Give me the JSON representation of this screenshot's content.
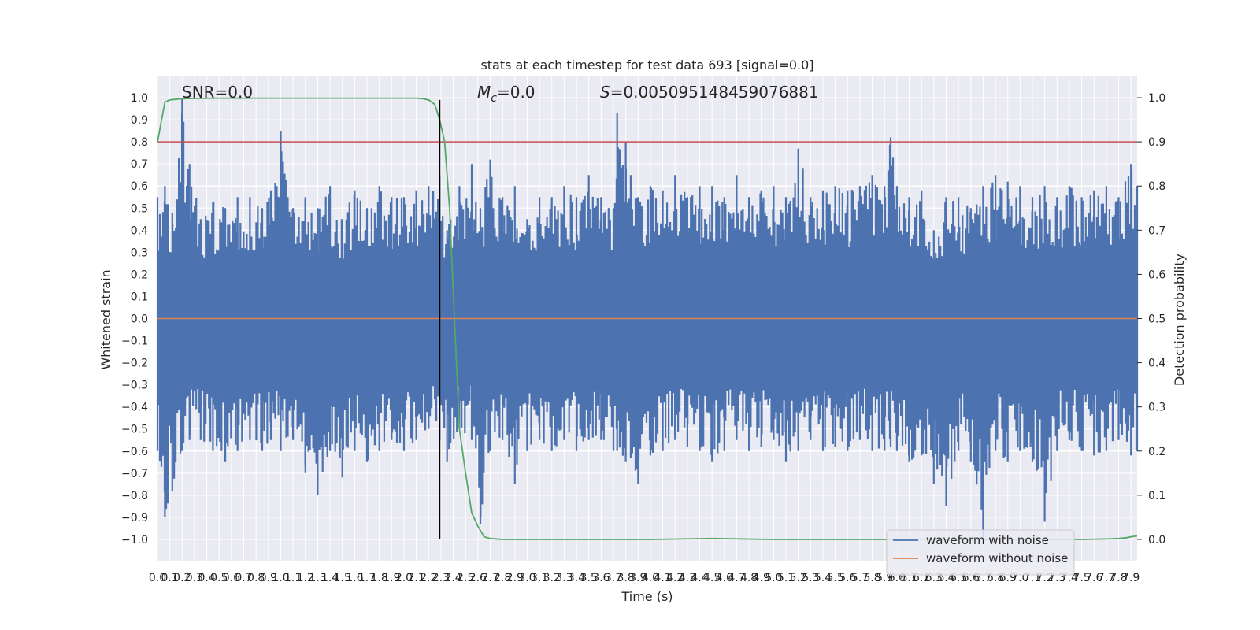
{
  "chart_data": {
    "type": "line",
    "title": "stats at each timestep for test data 693 [signal=0.0]",
    "xlabel": "Time (s)",
    "ylabel": "Whitened strain",
    "y2label": "Detection probability",
    "xlim": [
      0.0,
      7.95
    ],
    "ylim": [
      -1.1,
      1.1
    ],
    "y2lim": [
      -0.05,
      1.05
    ],
    "x_ticks": [
      "0.0",
      "0.1",
      "0.2",
      "0.3",
      "0.4",
      "0.5",
      "0.6",
      "0.7",
      "0.8",
      "0.9",
      "1.0",
      "1.1",
      "1.2",
      "1.3",
      "1.4",
      "1.5",
      "1.6",
      "1.7",
      "1.8",
      "1.9",
      "2.0",
      "2.1",
      "2.2",
      "2.3",
      "2.4",
      "2.5",
      "2.6",
      "2.7",
      "2.8",
      "2.9",
      "3.0",
      "3.1",
      "3.2",
      "3.3",
      "3.4",
      "3.5",
      "3.6",
      "3.7",
      "3.8",
      "3.9",
      "4.0",
      "4.1",
      "4.2",
      "4.3",
      "4.4",
      "4.5",
      "4.6",
      "4.7",
      "4.8",
      "4.9",
      "5.0",
      "5.1",
      "5.2",
      "5.3",
      "5.4",
      "5.5",
      "5.6",
      "5.7",
      "5.8",
      "5.9",
      "6.0",
      "6.1",
      "6.2",
      "6.3",
      "6.4",
      "6.5",
      "6.6",
      "6.7",
      "6.8",
      "6.9",
      "7.0",
      "7.1",
      "7.2",
      "7.3",
      "7.4",
      "7.5",
      "7.6",
      "7.7",
      "7.8",
      "7.9"
    ],
    "y_ticks": [
      "1.0",
      "0.9",
      "0.8",
      "0.7",
      "0.6",
      "0.5",
      "0.4",
      "0.3",
      "0.2",
      "0.1",
      "0.0",
      "−0.1",
      "−0.2",
      "−0.3",
      "−0.4",
      "−0.5",
      "−0.6",
      "−0.7",
      "−0.8",
      "−0.9",
      "−1.0"
    ],
    "y2_ticks": [
      "1.0",
      "0.9",
      "0.8",
      "0.7",
      "0.6",
      "0.5",
      "0.4",
      "0.3",
      "0.2",
      "0.1",
      "0.0"
    ],
    "annotations": {
      "snr": "SNR=0.0",
      "mc_symbol": "M",
      "mc_subscript": "c",
      "mc_value": "=0.0",
      "s_symbol": "S",
      "s_value": "=0.005095148459076881"
    },
    "legend": {
      "placement": "lower right",
      "entries": [
        "waveform with noise",
        "waveform without noise"
      ]
    },
    "colors": {
      "noise": "#4c72b0",
      "clean": "#dd8452",
      "probability": "#55a868",
      "threshold": "#c44e52",
      "marker": "#000000",
      "axes_bg": "#eaeaf2",
      "grid": "#ffffff"
    },
    "series": [
      {
        "name": "waveform with noise",
        "envelope_x": [
          0.0,
          0.06,
          0.12,
          0.2,
          0.26,
          0.35,
          0.45,
          0.55,
          0.65,
          0.75,
          0.85,
          0.92,
          1.0,
          1.1,
          1.2,
          1.3,
          1.4,
          1.5,
          1.6,
          1.7,
          1.8,
          1.9,
          2.0,
          2.1,
          2.2,
          2.29,
          2.35,
          2.45,
          2.55,
          2.62,
          2.7,
          2.8,
          2.9,
          3.0,
          3.1,
          3.2,
          3.3,
          3.4,
          3.5,
          3.6,
          3.7,
          3.73,
          3.8,
          3.9,
          4.0,
          4.1,
          4.2,
          4.3,
          4.4,
          4.5,
          4.6,
          4.7,
          4.8,
          4.9,
          5.0,
          5.1,
          5.2,
          5.3,
          5.4,
          5.5,
          5.6,
          5.7,
          5.8,
          5.9,
          5.95,
          6.0,
          6.1,
          6.2,
          6.3,
          6.4,
          6.5,
          6.6,
          6.7,
          6.8,
          6.9,
          7.0,
          7.1,
          7.2,
          7.3,
          7.4,
          7.5,
          7.6,
          7.7,
          7.8,
          7.9,
          7.95
        ],
        "envelope_max": [
          0.55,
          0.6,
          0.48,
          1.0,
          0.7,
          0.45,
          0.53,
          0.5,
          0.55,
          0.55,
          0.5,
          0.58,
          0.85,
          0.5,
          0.55,
          0.5,
          0.6,
          0.45,
          0.58,
          0.5,
          0.6,
          0.55,
          0.55,
          0.58,
          0.6,
          0.65,
          0.4,
          0.6,
          0.7,
          0.5,
          0.72,
          0.55,
          0.6,
          0.45,
          0.55,
          0.55,
          0.6,
          0.55,
          0.65,
          0.55,
          0.5,
          0.93,
          0.8,
          0.55,
          0.6,
          0.58,
          0.65,
          0.55,
          0.6,
          0.6,
          0.55,
          0.65,
          0.55,
          0.58,
          0.6,
          0.55,
          0.77,
          0.55,
          0.58,
          0.6,
          0.58,
          0.6,
          0.65,
          0.6,
          0.82,
          0.6,
          0.55,
          0.58,
          0.4,
          0.55,
          0.55,
          0.5,
          0.6,
          0.65,
          0.62,
          0.6,
          0.55,
          0.6,
          0.55,
          0.6,
          0.55,
          0.58,
          0.6,
          0.55,
          0.7,
          0.6
        ],
        "envelope_min": [
          -0.6,
          -0.9,
          -0.78,
          -0.6,
          -0.55,
          -0.55,
          -0.6,
          -0.65,
          -0.6,
          -0.55,
          -0.6,
          -0.55,
          -0.6,
          -0.55,
          -0.7,
          -0.8,
          -0.6,
          -0.72,
          -0.6,
          -0.65,
          -0.6,
          -0.55,
          -0.6,
          -0.55,
          -0.5,
          -0.55,
          -0.65,
          -0.5,
          -0.55,
          -0.93,
          -0.6,
          -0.55,
          -0.75,
          -0.6,
          -0.55,
          -0.6,
          -0.55,
          -0.6,
          -0.55,
          -0.55,
          -0.6,
          -0.6,
          -0.65,
          -0.75,
          -0.62,
          -0.6,
          -0.55,
          -0.58,
          -0.6,
          -0.65,
          -0.6,
          -0.55,
          -0.6,
          -0.58,
          -0.55,
          -0.65,
          -0.6,
          -0.55,
          -0.6,
          -0.58,
          -0.6,
          -0.55,
          -0.6,
          -0.6,
          -0.58,
          -0.6,
          -0.65,
          -0.62,
          -0.75,
          -0.85,
          -0.6,
          -0.65,
          -1.0,
          -0.6,
          -0.65,
          -0.6,
          -0.65,
          -0.92,
          -0.6,
          -0.55,
          -0.6,
          -0.62,
          -0.6,
          -0.55,
          -0.62,
          -0.6
        ]
      },
      {
        "name": "waveform without noise",
        "x": [
          0.0,
          7.95
        ],
        "y": [
          0.0,
          0.0
        ]
      },
      {
        "axis": "right",
        "x": [
          0.0,
          0.06,
          0.1,
          0.2,
          0.5,
          1.0,
          1.5,
          2.0,
          2.1,
          2.15,
          2.2,
          2.25,
          2.29,
          2.33,
          2.37,
          2.41,
          2.45,
          2.5,
          2.55,
          2.6,
          2.65,
          2.7,
          2.8,
          3.0,
          3.5,
          4.0,
          4.5,
          5.0,
          5.5,
          6.0,
          6.5,
          7.0,
          7.5,
          7.7,
          7.8,
          7.87,
          7.9,
          7.95
        ],
        "y": [
          0.9,
          0.99,
          0.995,
          0.998,
          0.999,
          0.999,
          0.999,
          0.999,
          0.999,
          0.998,
          0.995,
          0.985,
          0.95,
          0.9,
          0.75,
          0.5,
          0.25,
          0.15,
          0.06,
          0.03,
          0.006,
          0.002,
          0.0,
          0.0,
          0.0,
          0.0,
          0.002,
          0.0,
          0.0,
          0.0,
          0.0,
          0.0,
          0.0,
          0.001,
          0.002,
          0.004,
          0.006,
          0.008
        ]
      }
    ],
    "threshold_line": {
      "axis": "right",
      "y": 0.9
    },
    "marker_line": {
      "x": 2.29,
      "y_range": [
        -1.0,
        0.99
      ]
    }
  }
}
